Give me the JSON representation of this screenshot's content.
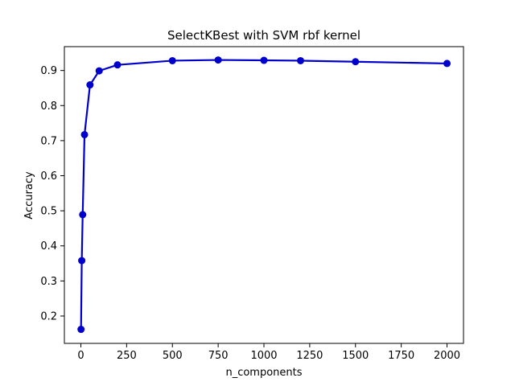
{
  "chart_data": {
    "type": "line",
    "title": "SelectKBest with SVM rbf kernel",
    "xlabel": "n_components",
    "ylabel": "Accuracy",
    "xlim": [
      -90,
      2090
    ],
    "ylim": [
      0.122,
      0.968
    ],
    "xticks": [
      0,
      250,
      500,
      750,
      1000,
      1250,
      1500,
      1750,
      2000
    ],
    "yticks": [
      0.2,
      0.3,
      0.4,
      0.5,
      0.6,
      0.7,
      0.8,
      0.9
    ],
    "grid": false,
    "series": [
      {
        "name": "accuracy",
        "color": "#0000cc",
        "marker": "circle",
        "x": [
          1,
          5,
          10,
          20,
          50,
          100,
          200,
          500,
          750,
          1000,
          1200,
          1500,
          2000
        ],
        "y": [
          0.162,
          0.358,
          0.489,
          0.717,
          0.859,
          0.899,
          0.916,
          0.928,
          0.93,
          0.929,
          0.928,
          0.925,
          0.92
        ]
      }
    ]
  }
}
